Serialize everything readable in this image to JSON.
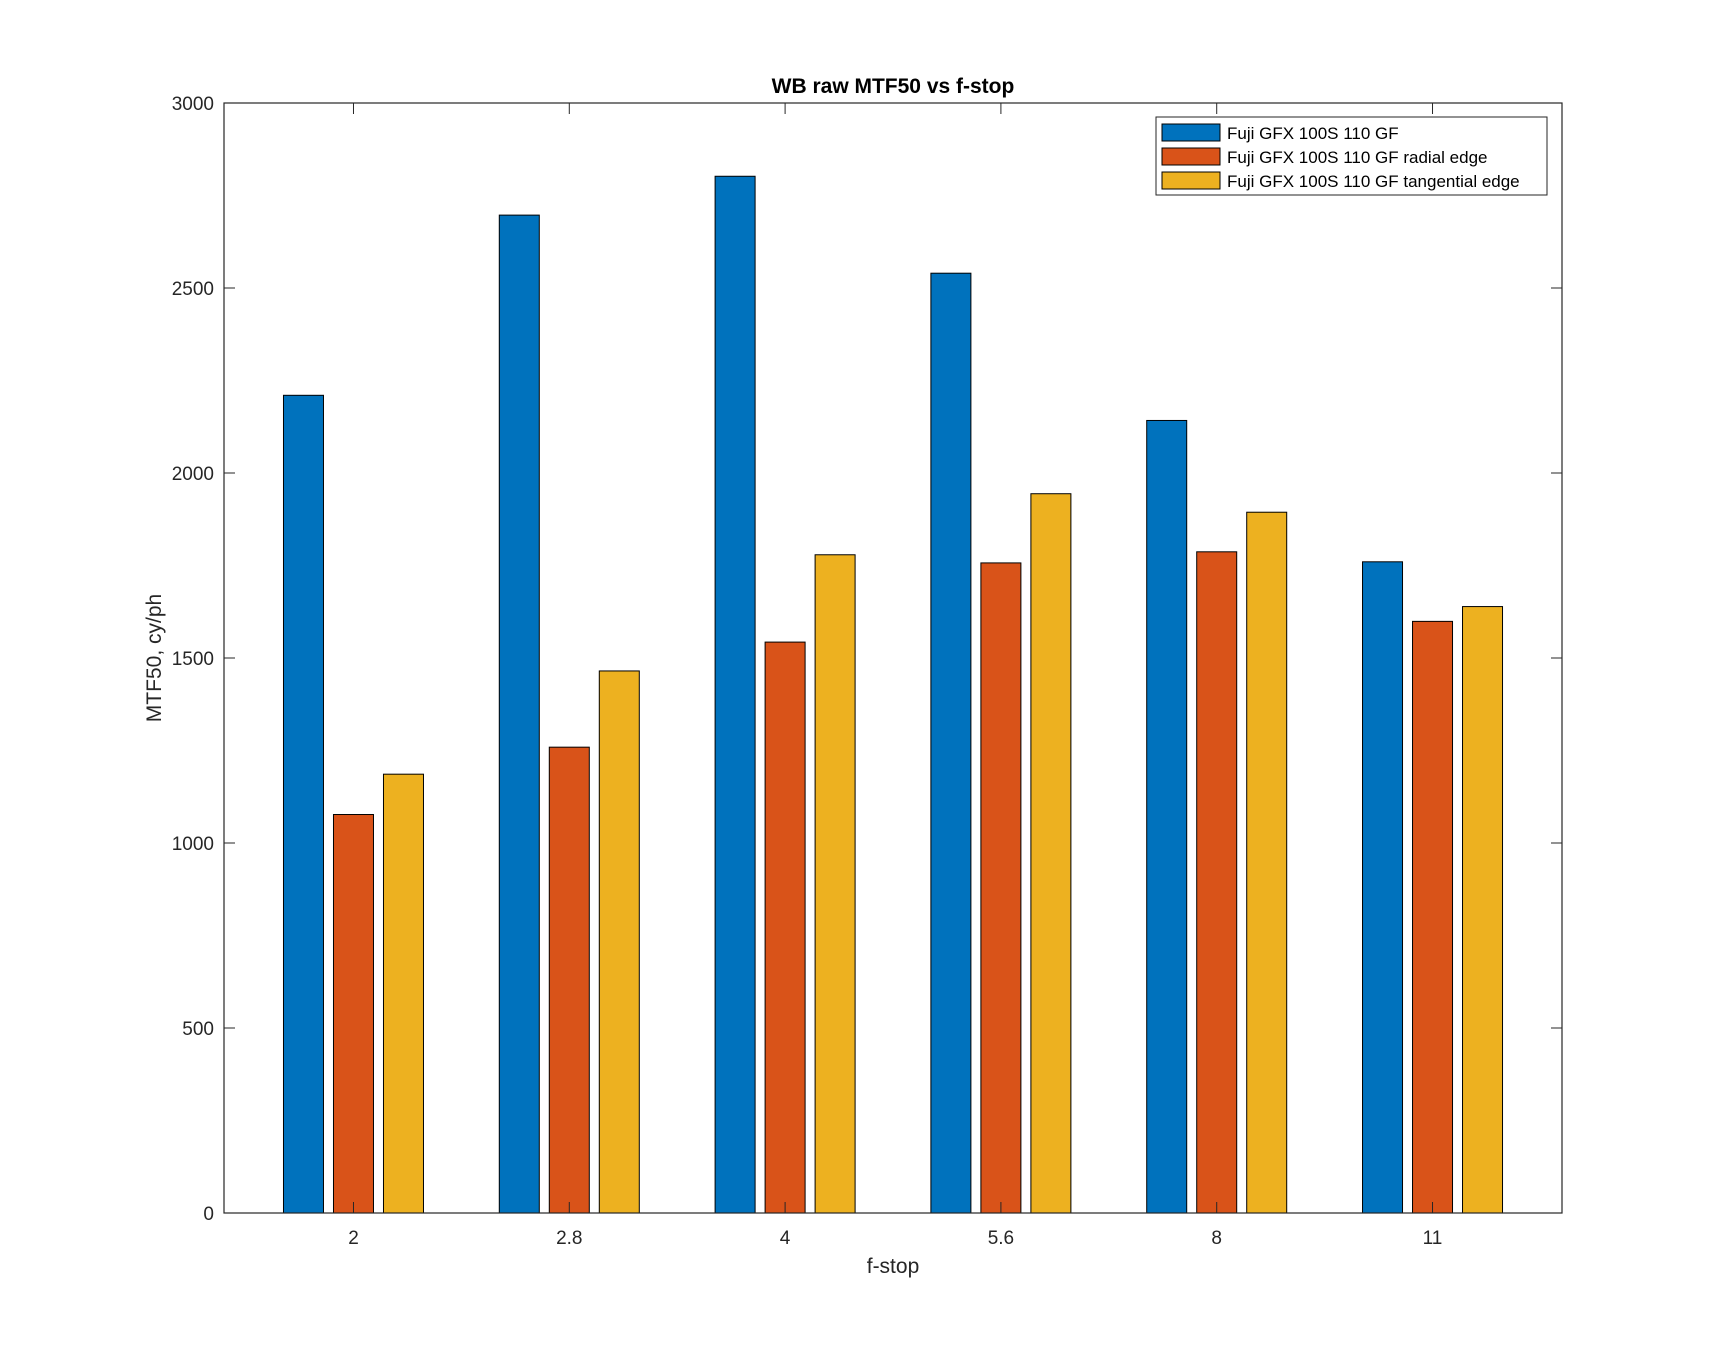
{
  "chart_data": {
    "type": "bar",
    "title": "WB raw MTF50 vs f-stop",
    "xlabel": "f-stop",
    "ylabel": "MTF50, cy/ph",
    "categories": [
      "2",
      "2.8",
      "4",
      "5.6",
      "8",
      "11"
    ],
    "ylim": [
      0,
      3000
    ],
    "yticks": [
      0,
      500,
      1000,
      1500,
      2000,
      2500,
      3000
    ],
    "grid": false,
    "legend_position": "top-right",
    "series": [
      {
        "name": "Fuji GFX 100S 110 GF",
        "color": "#0072BD",
        "values": [
          2210,
          2697,
          2802,
          2540,
          2142,
          1760
        ]
      },
      {
        "name": "Fuji GFX 100S 110 GF radial edge",
        "color": "#D95319",
        "values": [
          1077,
          1259,
          1543,
          1757,
          1787,
          1599
        ]
      },
      {
        "name": "Fuji GFX 100S 110 GF tangential edge",
        "color": "#EDB120",
        "values": [
          1186,
          1465,
          1779,
          1944,
          1894,
          1639
        ]
      }
    ]
  }
}
